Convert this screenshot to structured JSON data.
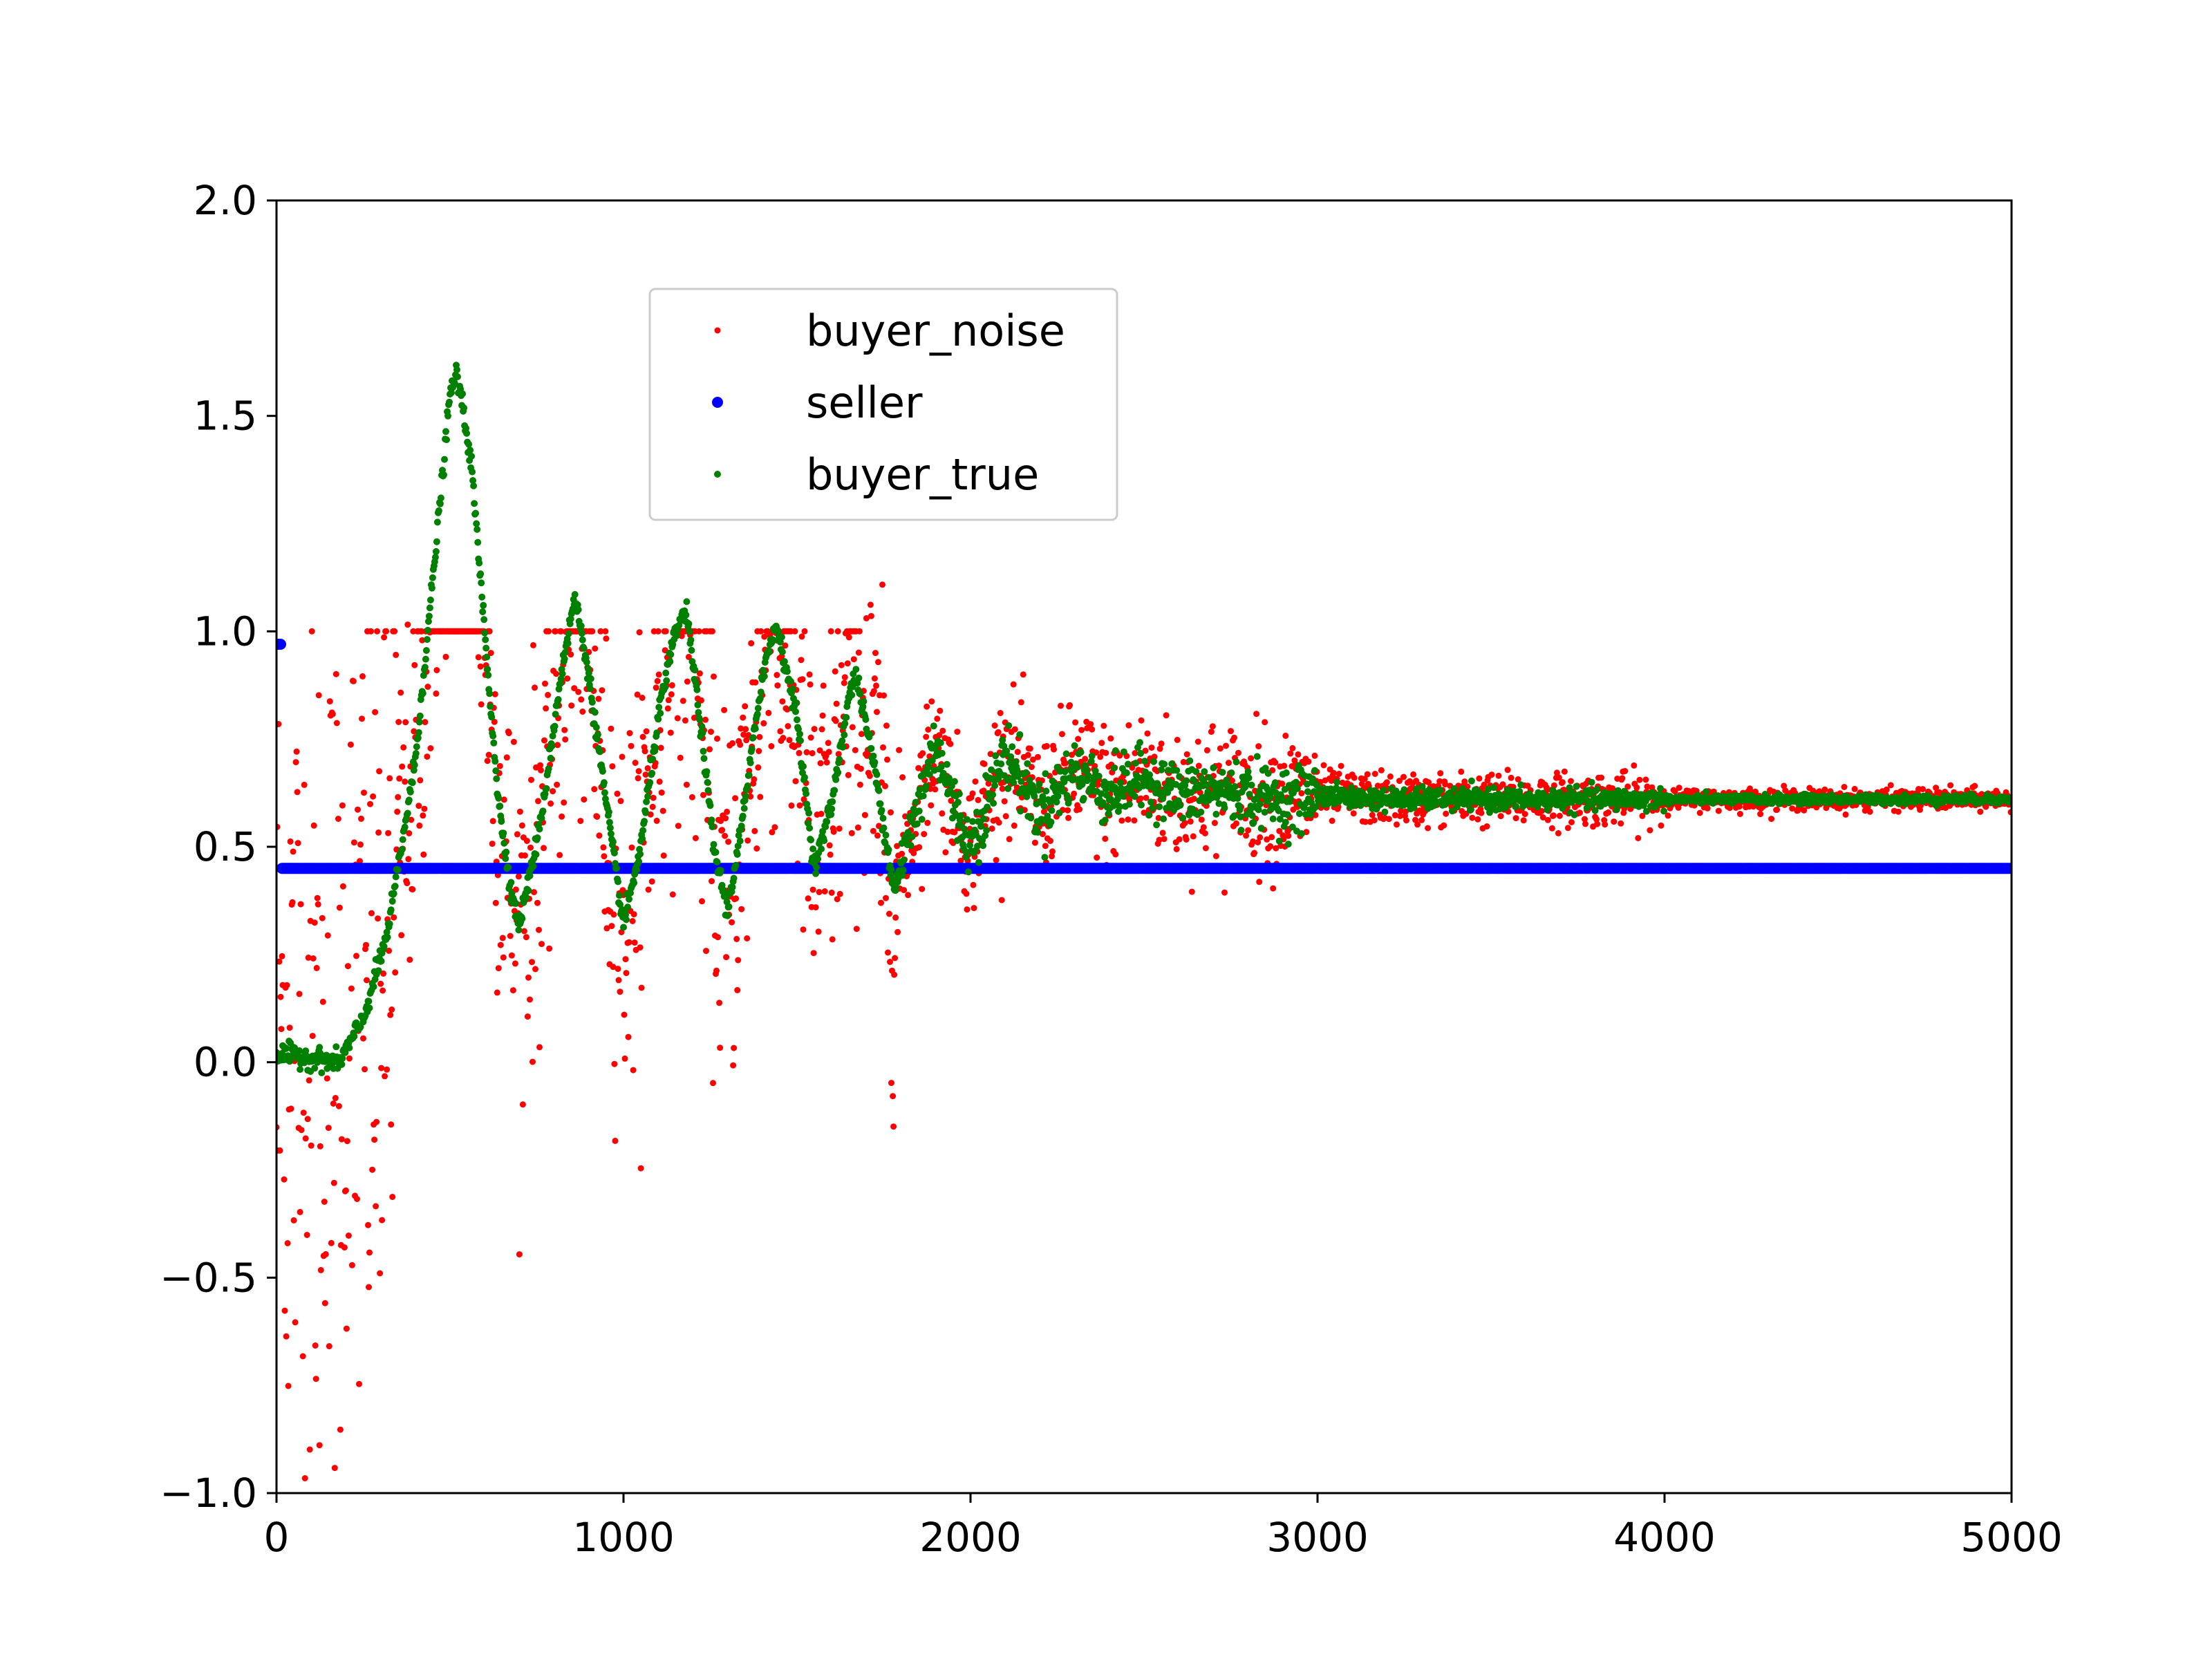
{
  "chart_data": {
    "type": "scatter",
    "title": "",
    "xlabel": "",
    "ylabel": "",
    "xlim": [
      0,
      5000
    ],
    "ylim": [
      -1.0,
      2.0
    ],
    "grid": false,
    "legend_position": "upper-center",
    "x_ticks": [
      0,
      1000,
      2000,
      3000,
      4000,
      5000
    ],
    "x_tick_labels": [
      "0",
      "1000",
      "2000",
      "3000",
      "4000",
      "5000"
    ],
    "y_ticks": [
      -1.0,
      -0.5,
      0.0,
      0.5,
      1.0,
      1.5,
      2.0
    ],
    "y_tick_labels": [
      "−1.0",
      "−0.5",
      "0.0",
      "0.5",
      "1.0",
      "1.5",
      "2.0"
    ],
    "series": [
      {
        "name": "buyer_noise",
        "color": "#ff0000",
        "marker_size": "small",
        "description_points": [
          [
            0,
            0.9
          ],
          [
            20,
            -0.5
          ],
          [
            40,
            0.4
          ],
          [
            60,
            -0.3
          ],
          [
            80,
            0.8
          ],
          [
            100,
            -0.8
          ],
          [
            120,
            0.2
          ],
          [
            140,
            -0.6
          ],
          [
            160,
            0.5
          ],
          [
            180,
            -0.2
          ],
          [
            200,
            0.7
          ],
          [
            220,
            -0.4
          ],
          [
            240,
            0.3
          ],
          [
            260,
            -0.1
          ],
          [
            280,
            0.6
          ],
          [
            300,
            -0.3
          ],
          [
            330,
            0.9
          ],
          [
            360,
            0.1
          ],
          [
            400,
            1.0
          ],
          [
            450,
            1.0
          ],
          [
            500,
            1.0
          ],
          [
            550,
            1.0
          ],
          [
            600,
            1.0
          ],
          [
            650,
            0.2
          ],
          [
            680,
            -0.1
          ],
          [
            700,
            0.3
          ],
          [
            720,
            0.6
          ],
          [
            760,
            0.9
          ],
          [
            800,
            1.0
          ],
          [
            850,
            0.8
          ],
          [
            900,
            1.0
          ],
          [
            950,
            0.6
          ],
          [
            980,
            0.1
          ],
          [
            1000,
            0.2
          ],
          [
            1050,
            0.5
          ],
          [
            1100,
            0.9
          ],
          [
            1150,
            1.0
          ],
          [
            1200,
            0.9
          ],
          [
            1250,
            0.5
          ],
          [
            1280,
            0.1
          ],
          [
            1320,
            0.4
          ],
          [
            1380,
            0.8
          ],
          [
            1440,
            0.9
          ],
          [
            1500,
            0.7
          ],
          [
            1550,
            0.3
          ],
          [
            1600,
            0.6
          ],
          [
            1650,
            0.9
          ],
          [
            1700,
            0.8
          ],
          [
            1750,
            0.5
          ],
          [
            1800,
            0.4
          ],
          [
            1850,
            0.7
          ],
          [
            1900,
            0.8
          ],
          [
            1950,
            0.6
          ],
          [
            2000,
            0.5
          ],
          [
            2100,
            0.7
          ],
          [
            2200,
            0.6
          ],
          [
            2300,
            0.7
          ],
          [
            2400,
            0.65
          ],
          [
            2500,
            0.6
          ],
          [
            2600,
            0.68
          ],
          [
            2700,
            0.62
          ],
          [
            2800,
            0.64
          ],
          [
            2900,
            0.6
          ],
          [
            3000,
            0.63
          ],
          [
            3200,
            0.62
          ],
          [
            3400,
            0.61
          ],
          [
            3600,
            0.62
          ],
          [
            3800,
            0.61
          ],
          [
            4000,
            0.61
          ],
          [
            4200,
            0.61
          ],
          [
            4400,
            0.61
          ],
          [
            4600,
            0.61
          ],
          [
            4800,
            0.61
          ],
          [
            5000,
            0.61
          ]
        ]
      },
      {
        "name": "seller",
        "color": "#0000ff",
        "marker_size": "medium",
        "description_points": [
          [
            0,
            0.98
          ],
          [
            10,
            0.96
          ],
          [
            20,
            0.45
          ],
          [
            1000,
            0.45
          ],
          [
            2000,
            0.45
          ],
          [
            3000,
            0.45
          ],
          [
            4000,
            0.45
          ],
          [
            5000,
            0.45
          ]
        ]
      },
      {
        "name": "buyer_true",
        "color": "#008000",
        "marker_size": "small",
        "description_points": [
          [
            0,
            0.02
          ],
          [
            100,
            0.01
          ],
          [
            180,
            0.0
          ],
          [
            250,
            0.1
          ],
          [
            320,
            0.3
          ],
          [
            400,
            0.7
          ],
          [
            460,
            1.2
          ],
          [
            500,
            1.55
          ],
          [
            520,
            1.6
          ],
          [
            560,
            1.4
          ],
          [
            600,
            1.0
          ],
          [
            640,
            0.6
          ],
          [
            680,
            0.38
          ],
          [
            700,
            0.32
          ],
          [
            760,
            0.55
          ],
          [
            820,
            0.9
          ],
          [
            860,
            1.08
          ],
          [
            900,
            0.9
          ],
          [
            950,
            0.6
          ],
          [
            1000,
            0.32
          ],
          [
            1050,
            0.5
          ],
          [
            1100,
            0.8
          ],
          [
            1150,
            1.0
          ],
          [
            1180,
            1.05
          ],
          [
            1220,
            0.8
          ],
          [
            1260,
            0.5
          ],
          [
            1300,
            0.35
          ],
          [
            1350,
            0.6
          ],
          [
            1400,
            0.9
          ],
          [
            1440,
            1.02
          ],
          [
            1500,
            0.8
          ],
          [
            1550,
            0.45
          ],
          [
            1600,
            0.6
          ],
          [
            1650,
            0.85
          ],
          [
            1670,
            0.9
          ],
          [
            1720,
            0.7
          ],
          [
            1780,
            0.4
          ],
          [
            1850,
            0.6
          ],
          [
            1900,
            0.75
          ],
          [
            1950,
            0.6
          ],
          [
            2000,
            0.5
          ],
          [
            2100,
            0.72
          ],
          [
            2200,
            0.58
          ],
          [
            2300,
            0.68
          ],
          [
            2400,
            0.62
          ],
          [
            2500,
            0.66
          ],
          [
            2600,
            0.62
          ],
          [
            2700,
            0.63
          ],
          [
            2800,
            0.62
          ],
          [
            2900,
            0.61
          ],
          [
            3000,
            0.62
          ],
          [
            3200,
            0.61
          ],
          [
            3400,
            0.61
          ],
          [
            3600,
            0.61
          ],
          [
            3800,
            0.61
          ],
          [
            4000,
            0.61
          ],
          [
            4200,
            0.61
          ],
          [
            4400,
            0.61
          ],
          [
            4600,
            0.61
          ],
          [
            4800,
            0.61
          ],
          [
            5000,
            0.61
          ]
        ]
      }
    ]
  },
  "legend": {
    "entries": [
      {
        "label": "buyer_noise",
        "color": "#ff0000"
      },
      {
        "label": "seller",
        "color": "#0000ff"
      },
      {
        "label": "buyer_true",
        "color": "#008000"
      }
    ]
  }
}
